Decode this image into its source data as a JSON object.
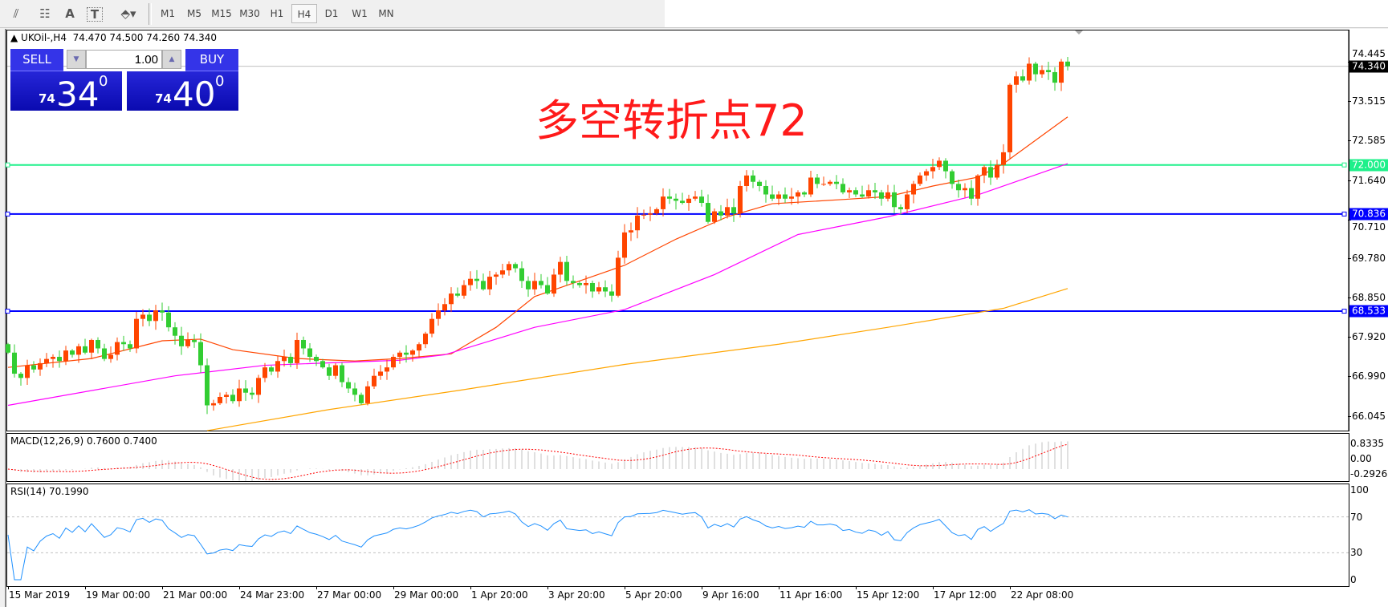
{
  "toolbar": {
    "tools": [
      {
        "icon": "fibonacci-fan-icon",
        "glyph": "⫽"
      },
      {
        "icon": "fibonacci-grid-icon",
        "glyph": "☷"
      },
      {
        "icon": "text-icon",
        "glyph": "A"
      },
      {
        "icon": "text-label-icon",
        "glyph": "T"
      },
      {
        "icon": "arrows-dropdown-icon",
        "glyph": "⬘▾"
      }
    ],
    "timeframes": [
      "M1",
      "M5",
      "M15",
      "M30",
      "H1",
      "H4",
      "D1",
      "W1",
      "MN"
    ],
    "active": "H4"
  },
  "chart": {
    "header": "▲ UKOil-,H4  74.470 74.500 74.260 74.340",
    "annotation": "多空转折点72"
  },
  "trade": {
    "sell_label": "SELL",
    "buy_label": "BUY",
    "lot": "1.00",
    "down_arrow": "▼",
    "up_arrow": "▲",
    "sell_price": {
      "small": "74",
      "big": "34",
      "sup": "0"
    },
    "buy_price": {
      "small": "74",
      "big": "40",
      "sup": "0"
    }
  },
  "price_axis": {
    "ticks": [
      "74.445",
      "73.515",
      "72.585",
      "71.640",
      "70.710",
      "69.780",
      "68.850",
      "67.920",
      "66.990",
      "66.045"
    ],
    "current": {
      "label": "74.340",
      "value": 74.34,
      "color": "#000000",
      "line_color": "#c0c0c0"
    },
    "lines": [
      {
        "label": "72.000",
        "value": 72.0,
        "color": "#1ef08a"
      },
      {
        "label": "70.836",
        "value": 70.836,
        "color": "#0000ff"
      },
      {
        "label": "68.533",
        "value": 68.533,
        "color": "#0000ff"
      }
    ]
  },
  "chart_data": {
    "type": "candlestick",
    "symbol": "UKOil-",
    "timeframe": "H4",
    "ylim": [
      65.7,
      75.2
    ],
    "up_color": "#ff4500",
    "down_color": "#32cd32",
    "close": [
      67.55,
      67.05,
      66.95,
      67.25,
      67.15,
      67.3,
      67.4,
      67.45,
      67.35,
      67.6,
      67.5,
      67.7,
      67.55,
      67.85,
      67.65,
      67.4,
      67.5,
      67.8,
      67.75,
      67.65,
      68.35,
      68.45,
      68.3,
      68.55,
      68.5,
      68.15,
      67.95,
      67.7,
      67.85,
      67.8,
      67.25,
      66.3,
      66.35,
      66.5,
      66.55,
      66.4,
      66.7,
      66.6,
      66.55,
      66.95,
      67.2,
      67.1,
      67.35,
      67.45,
      67.3,
      67.85,
      67.65,
      67.45,
      67.35,
      67.2,
      67.0,
      67.25,
      66.85,
      66.7,
      66.55,
      66.35,
      66.75,
      67.0,
      67.1,
      67.2,
      67.45,
      67.55,
      67.5,
      67.6,
      67.75,
      68.0,
      68.35,
      68.55,
      68.7,
      68.95,
      68.9,
      69.15,
      69.3,
      69.25,
      69.05,
      69.35,
      69.4,
      69.5,
      69.65,
      69.55,
      69.25,
      69.05,
      69.25,
      69.15,
      68.95,
      69.4,
      69.7,
      69.25,
      69.2,
      69.15,
      69.2,
      69.0,
      69.1,
      69.0,
      68.9,
      69.8,
      70.4,
      70.45,
      70.8,
      70.82,
      70.85,
      70.95,
      71.25,
      71.2,
      71.15,
      71.1,
      71.2,
      71.25,
      71.1,
      70.65,
      70.9,
      70.8,
      71.0,
      70.85,
      71.5,
      71.75,
      71.6,
      71.5,
      71.3,
      71.2,
      71.3,
      71.2,
      71.25,
      71.35,
      71.3,
      71.7,
      71.55,
      71.55,
      71.6,
      71.55,
      71.35,
      71.4,
      71.3,
      71.25,
      71.4,
      71.35,
      71.2,
      71.35,
      71.0,
      70.95,
      71.3,
      71.55,
      71.75,
      71.85,
      71.95,
      72.1,
      71.85,
      71.55,
      71.4,
      71.45,
      71.2,
      71.75,
      71.95,
      71.7,
      72.0,
      72.3,
      73.9,
      74.1,
      74.0,
      74.4,
      74.15,
      74.25,
      74.2,
      73.95,
      74.45,
      74.34
    ],
    "moving_averages": [
      {
        "color": "#ff4500",
        "points": [
          [
            0,
            67.2
          ],
          [
            13,
            67.41
          ],
          [
            24,
            67.83
          ],
          [
            30,
            67.87
          ],
          [
            35,
            67.62
          ],
          [
            45,
            67.41
          ],
          [
            54,
            67.35
          ],
          [
            61,
            67.41
          ],
          [
            69,
            67.52
          ],
          [
            76,
            68.15
          ],
          [
            82,
            68.88
          ],
          [
            96,
            69.62
          ],
          [
            104,
            70.24
          ],
          [
            112,
            70.77
          ],
          [
            119,
            71.08
          ],
          [
            130,
            71.18
          ],
          [
            137,
            71.25
          ],
          [
            144,
            71.5
          ],
          [
            151,
            71.71
          ],
          [
            155,
            72.03
          ],
          [
            165,
            73.14
          ]
        ]
      },
      {
        "color": "#ff00ff",
        "points": [
          [
            0,
            66.3
          ],
          [
            26,
            67.0
          ],
          [
            40,
            67.25
          ],
          [
            61,
            67.37
          ],
          [
            68,
            67.5
          ],
          [
            82,
            68.15
          ],
          [
            96,
            68.57
          ],
          [
            110,
            69.4
          ],
          [
            123,
            70.35
          ],
          [
            137,
            70.77
          ],
          [
            151,
            71.29
          ],
          [
            165,
            72.03
          ]
        ]
      },
      {
        "color": "#ffa500",
        "points": [
          [
            31,
            65.7
          ],
          [
            50,
            66.2
          ],
          [
            70,
            66.65
          ],
          [
            96,
            67.27
          ],
          [
            120,
            67.75
          ],
          [
            137,
            68.15
          ],
          [
            155,
            68.6
          ],
          [
            165,
            69.07
          ]
        ]
      }
    ]
  },
  "macd": {
    "label": "MACD(12,26,9) 0.7600 0.7400",
    "ticks": [
      "0.8335",
      "0.00",
      "-0.2926"
    ],
    "histogram_color": "#c0c0c0",
    "signal_color": "#ff0000"
  },
  "rsi": {
    "label": "RSI(14) 70.1990",
    "ticks": [
      "100",
      "70",
      "30",
      "0"
    ],
    "color": "#1e90ff"
  },
  "time_axis": [
    "15 Mar 2019",
    "19 Mar 00:00",
    "21 Mar 00:00",
    "24 Mar 23:00",
    "27 Mar 00:00",
    "29 Mar 00:00",
    "1 Apr 20:00",
    "3 Apr 20:00",
    "5 Apr 20:00",
    "9 Apr 16:00",
    "11 Apr 16:00",
    "15 Apr 12:00",
    "17 Apr 12:00",
    "22 Apr 08:00"
  ]
}
